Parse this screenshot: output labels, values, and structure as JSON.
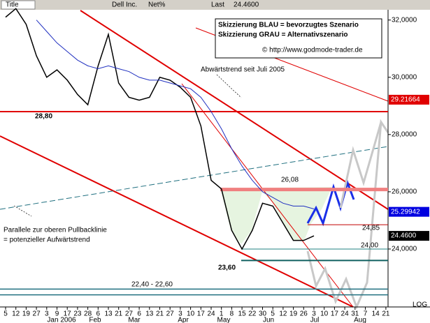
{
  "chart_data": {
    "type": "line",
    "header": {
      "title": "Title",
      "symbol": "Dell Inc.",
      "net": "Net%",
      "last_label": "Last",
      "last": "24.4600"
    },
    "info": [
      "Skizzierung BLAU = bevorzugtes Szenario",
      "Skizzierung GRAU = Alternativszenario",
      "© http://www.godmode-trader.de"
    ],
    "annotations": [
      "Abwärtstrend seit Juli 2005",
      "Parallele zur oberen Pullbacklinie",
      "= potenzieller Aufwärtstrend"
    ],
    "scale_label": "LOG",
    "categories": [
      "5",
      "12",
      "19",
      "27",
      "3",
      "9",
      "17",
      "23",
      "28",
      "6",
      "13",
      "21",
      "27",
      "6",
      "13",
      "21",
      "27",
      "3",
      "10",
      "17",
      "24",
      "1",
      "8",
      "15",
      "22",
      "30",
      "5",
      "12",
      "19",
      "26",
      "3",
      "10",
      "17",
      "24",
      "31",
      "7",
      "14",
      "21"
    ],
    "months": [
      "Jan 2006",
      "Feb",
      "Mar",
      "Apr",
      "May",
      "Jun",
      "Jul",
      "Aug"
    ],
    "series": [
      {
        "color": "#000000",
        "values": [
          32.1,
          32.4,
          31.85,
          30.75,
          30.0,
          30.26,
          29.9,
          29.4,
          29.04,
          30.4,
          31.5,
          29.8,
          29.3,
          29.2,
          29.3,
          30.0,
          29.9,
          29.65,
          29.3,
          28.3,
          26.4,
          26.1,
          24.65,
          24.0,
          24.65,
          25.6,
          25.5,
          24.9,
          24.3,
          24.3,
          24.46,
          null,
          null,
          null,
          null,
          null,
          null,
          null
        ]
      },
      {
        "color": "#2030c0",
        "values": [
          null,
          null,
          null,
          32.0,
          31.6,
          31.2,
          30.9,
          30.6,
          30.4,
          30.3,
          30.4,
          30.3,
          30.2,
          30.0,
          29.9,
          29.9,
          29.8,
          29.7,
          29.6,
          29.3,
          28.8,
          28.2,
          27.5,
          26.9,
          26.4,
          26.0,
          25.8,
          25.6,
          25.5,
          25.5,
          25.4,
          null,
          null,
          null,
          null,
          null,
          null,
          null
        ]
      }
    ],
    "levels": [
      {
        "value": 28.8,
        "label": "28,80",
        "color": "#e00000"
      },
      {
        "value": 26.08,
        "label": "26,08",
        "color": "#f08080"
      },
      {
        "value": 24.85,
        "label": "24,85",
        "color": "#c00000"
      },
      {
        "value": 24.0,
        "label": "24,00",
        "color": "#208080"
      },
      {
        "value": 23.6,
        "label": "23,60",
        "color": "#106060"
      }
    ],
    "zone": {
      "label": "22,40 - 22,60",
      "values": [
        22.4,
        22.6
      ]
    },
    "price_tags": [
      {
        "value": 29.21664,
        "color": "#e00000"
      },
      {
        "value": 25.29942,
        "color": "#0000e0"
      },
      {
        "value": 24.46,
        "label": "24.4600",
        "color": "#000000"
      }
    ],
    "ylim": [
      22,
      32.7
    ],
    "yticks": [
      {
        "value": 32,
        "label": "32,0000"
      },
      {
        "value": 30,
        "label": "30,0000"
      },
      {
        "value": 28,
        "label": "28,0000"
      },
      {
        "value": 26,
        "label": "26,0000"
      },
      {
        "value": 24,
        "label": "24,0000"
      }
    ]
  }
}
